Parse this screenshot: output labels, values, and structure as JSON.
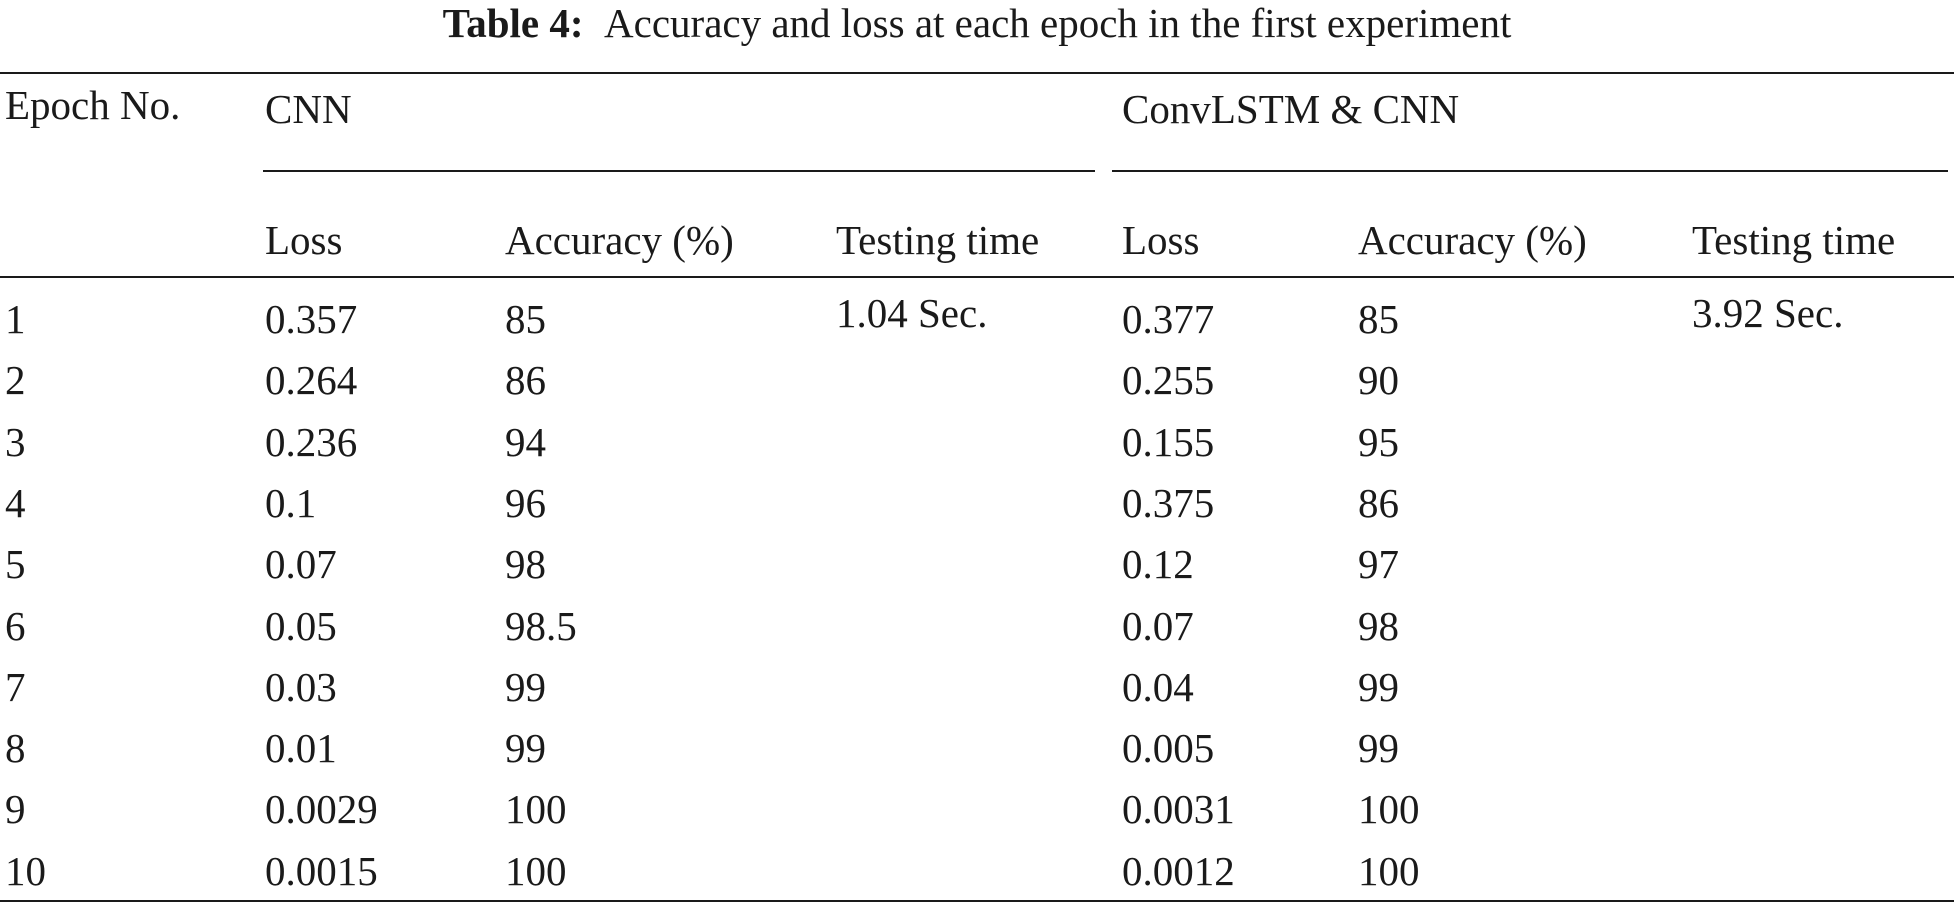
{
  "caption": {
    "label": "Table 4:",
    "text": "Accuracy and loss at each epoch in the first experiment"
  },
  "table": {
    "epoch_header": "Epoch No.",
    "groups": [
      {
        "name": "CNN",
        "columns": [
          "Loss",
          "Accuracy (%)",
          "Testing time"
        ],
        "testing_time": "1.04 Sec."
      },
      {
        "name": "ConvLSTM & CNN",
        "columns": [
          "Loss",
          "Accuracy (%)",
          "Testing time"
        ],
        "testing_time": "3.92 Sec."
      }
    ],
    "rows": [
      {
        "epoch": "1",
        "cnn_loss": "0.357",
        "cnn_acc": "85",
        "conv_loss": "0.377",
        "conv_acc": "85"
      },
      {
        "epoch": "2",
        "cnn_loss": "0.264",
        "cnn_acc": "86",
        "conv_loss": "0.255",
        "conv_acc": "90"
      },
      {
        "epoch": "3",
        "cnn_loss": "0.236",
        "cnn_acc": "94",
        "conv_loss": "0.155",
        "conv_acc": "95"
      },
      {
        "epoch": "4",
        "cnn_loss": "0.1",
        "cnn_acc": "96",
        "conv_loss": "0.375",
        "conv_acc": "86"
      },
      {
        "epoch": "5",
        "cnn_loss": "0.07",
        "cnn_acc": "98",
        "conv_loss": "0.12",
        "conv_acc": "97"
      },
      {
        "epoch": "6",
        "cnn_loss": "0.05",
        "cnn_acc": "98.5",
        "conv_loss": "0.07",
        "conv_acc": "98"
      },
      {
        "epoch": "7",
        "cnn_loss": "0.03",
        "cnn_acc": "99",
        "conv_loss": "0.04",
        "conv_acc": "99"
      },
      {
        "epoch": "8",
        "cnn_loss": "0.01",
        "cnn_acc": "99",
        "conv_loss": "0.005",
        "conv_acc": "99"
      },
      {
        "epoch": "9",
        "cnn_loss": "0.0029",
        "cnn_acc": "100",
        "conv_loss": "0.0031",
        "conv_acc": "100"
      },
      {
        "epoch": "10",
        "cnn_loss": "0.0015",
        "cnn_acc": "100",
        "conv_loss": "0.0012",
        "conv_acc": "100"
      }
    ]
  }
}
